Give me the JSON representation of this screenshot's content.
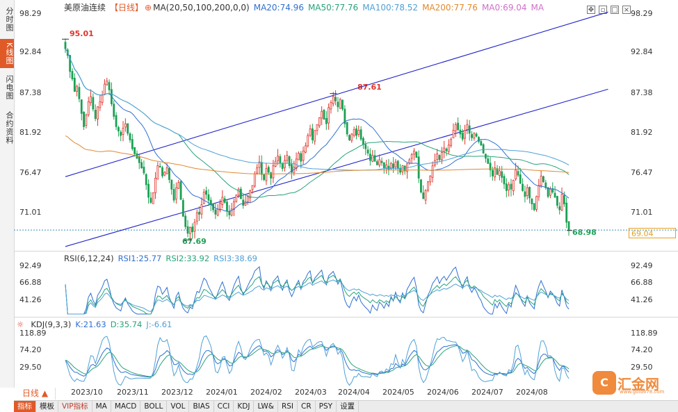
{
  "sidebar": {
    "tabs": [
      {
        "label": "分时图",
        "active": false
      },
      {
        "label": "K线图",
        "active": true
      },
      {
        "label": "闪电图",
        "active": false
      },
      {
        "label": "合约资料",
        "active": false
      }
    ]
  },
  "header": {
    "symbol": "美原油连续",
    "period_tag": "【日线】",
    "ma_params": "MA(20,50,100,200,0,0)",
    "ma20": "MA20:74.96",
    "ma50": "MA50:77.76",
    "ma100": "MA100:78.52",
    "ma200": "MA200:77.76",
    "ma0": "MA0:69.04",
    "ma_blank": "MA"
  },
  "rsi_header": {
    "name": "RSI(6,12,24)",
    "rsi1": "RSI1:25.77",
    "rsi2": "RSI2:33.92",
    "rsi3": "RSI3:38.69"
  },
  "kdj_header": {
    "name": "KDJ(9,3,3)",
    "k": "K:21.63",
    "d": "D:35.74",
    "j": "J:-6.61"
  },
  "current_price": "69.04",
  "annotations": {
    "high1": "95.01",
    "high2": "87.61",
    "low1": "67.69",
    "low2": "68.98"
  },
  "bottom_bar": {
    "period": "日线 ▲",
    "tabs": [
      "指标",
      "模板",
      "VIP指标",
      "MA",
      "MACD",
      "BOLL",
      "VOL",
      "BIAS",
      "CCI",
      "KDJ",
      "LW&",
      "RSI",
      "CR",
      "PSY",
      "设置"
    ]
  },
  "logo": {
    "name": "汇金网",
    "url": "www.gold678.com"
  },
  "colors": {
    "up": "#e0342a",
    "down": "#1aa053",
    "ma20": "#2f6fd1",
    "ma50": "#27a37a",
    "ma100": "#4fa0d6",
    "ma200": "#e0892f",
    "channel": "#1f23c8",
    "accent": "#e05a28"
  },
  "chart_data": [
    {
      "type": "candlestick",
      "title": "美原油连续 日线",
      "y_ticks": [
        "98.29",
        "92.84",
        "87.38",
        "81.92",
        "76.47",
        "71.01"
      ],
      "ylim": [
        66.5,
        99.2
      ],
      "x_ticks": [
        "2023/10",
        "2023/11",
        "2023/12",
        "2024/01",
        "2024/02",
        "2024/03",
        "2024/04",
        "2024/05",
        "2024/06",
        "2024/07",
        "2024/08"
      ],
      "close_series": [
        93.7,
        92.8,
        90.6,
        89.6,
        87.9,
        88.6,
        86.9,
        84.9,
        83.1,
        84.7,
        86.5,
        87.2,
        85.5,
        84.2,
        85.8,
        86.5,
        87.4,
        88.9,
        89.3,
        88.1,
        86.2,
        84.5,
        83.1,
        82.5,
        81.9,
        82.9,
        83.5,
        82.2,
        81.3,
        80.1,
        79.4,
        78.8,
        78.2,
        77.5,
        76.8,
        75.2,
        73.5,
        72.8,
        74.1,
        76.1,
        77.8,
        77.6,
        76.4,
        76.9,
        77.5,
        75.9,
        74.6,
        73.1,
        74.8,
        75.5,
        73.2,
        70.9,
        69.5,
        68.6,
        69.4,
        68.8,
        70.1,
        71.4,
        71.2,
        72.5,
        74.2,
        73.9,
        73.1,
        72.5,
        71.8,
        71.2,
        71.9,
        72.7,
        73.5,
        72.8,
        71.6,
        71.1,
        71.9,
        72.9,
        73.8,
        74.6,
        73.3,
        72.4,
        72.9,
        73.6,
        74.4,
        75.1,
        76.7,
        77.5,
        78.3,
        76.6,
        75.9,
        77.4,
        76.9,
        76.1,
        77.8,
        78.4,
        79.1,
        78.1,
        77.4,
        78.5,
        79.2,
        77.8,
        76.9,
        77.6,
        78.7,
        79.5,
        78.4,
        79.8,
        80.5,
        81.9,
        82.8,
        81.3,
        82.6,
        83.4,
        84.3,
        85.2,
        84.1,
        83.5,
        85.7,
        86.4,
        87.2,
        86.6,
        85.8,
        86.8,
        85.5,
        83.5,
        82.1,
        81.3,
        82.1,
        82.7,
        81.9,
        82.6,
        81.4,
        80.7,
        80.1,
        79.5,
        78.5,
        79.2,
        78.4,
        77.9,
        78.6,
        78.2,
        77.5,
        77.9,
        77.3,
        78.1,
        77.5,
        78.3,
        77.4,
        76.9,
        77.8,
        77.1,
        78.1,
        78.6,
        79.3,
        79.8,
        78.9,
        76.1,
        74.2,
        73.3,
        74.4,
        75.6,
        76.4,
        77.8,
        78.5,
        79.4,
        78.6,
        79.6,
        80.2,
        79.8,
        80.6,
        81.4,
        82.6,
        83.4,
        82.7,
        82.1,
        81.4,
        82.6,
        83.4,
        82.2,
        81.6,
        82.2,
        81.8,
        81.1,
        80.6,
        79.5,
        78.8,
        78.1,
        77.2,
        76.4,
        77.5,
        76.6,
        77.1,
        76.2,
        75.3,
        74.4,
        75.2,
        74.6,
        75.8,
        77.2,
        76.5,
        75.4,
        74.4,
        73.6,
        74.8,
        73.4,
        72.6,
        71.8,
        73.6,
        75.1,
        76.4,
        75.6,
        74.8,
        73.6,
        74.6,
        74.2,
        73.5,
        72.4,
        71.8,
        73.9,
        72.6,
        70.1,
        69.0
      ],
      "indicators": {
        "MA20": 74.96,
        "MA50": 77.76,
        "MA100": 78.52,
        "MA200": 77.76,
        "last_price": 69.04,
        "highs_marked": [
          95.01,
          87.61
        ],
        "lows_marked": [
          67.69,
          68.98
        ]
      },
      "channel": {
        "upper": [
          [
            0,
            76.3
          ],
          [
            235,
            98.7
          ]
        ],
        "lower": [
          [
            0,
            66.8
          ],
          [
            235,
            88.2
          ]
        ]
      }
    },
    {
      "type": "line",
      "title": "RSI(6,12,24)",
      "y_ticks": [
        "92.49",
        "66.88",
        "41.26"
      ],
      "ylim": [
        18,
        100
      ],
      "series": [
        {
          "name": "RSI1",
          "last": 25.77
        },
        {
          "name": "RSI2",
          "last": 33.92
        },
        {
          "name": "RSI3",
          "last": 38.69
        }
      ]
    },
    {
      "type": "line",
      "title": "KDJ(9,3,3)",
      "y_ticks": [
        "118.89",
        "74.20",
        "29.50"
      ],
      "ylim": [
        -15,
        135
      ],
      "series": [
        {
          "name": "K",
          "last": 21.63
        },
        {
          "name": "D",
          "last": 35.74
        },
        {
          "name": "J",
          "last": -6.61
        }
      ]
    }
  ]
}
